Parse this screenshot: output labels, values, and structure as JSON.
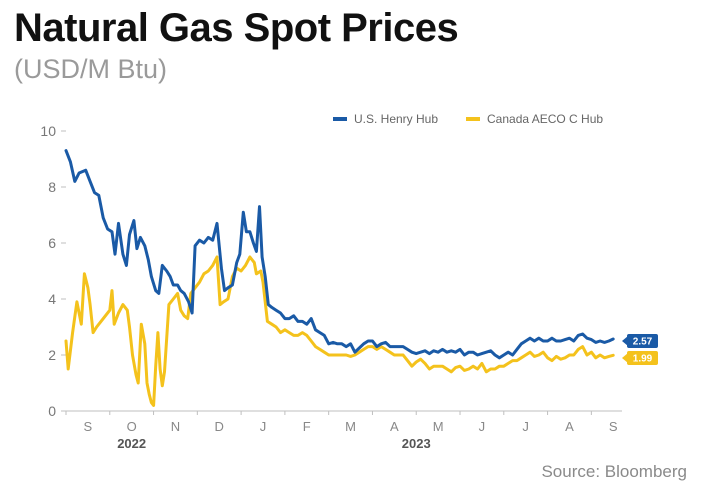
{
  "header": {
    "title": "Natural Gas Spot Prices",
    "subtitle": "(USD/M Btu)"
  },
  "footer": {
    "source": "Source: Bloomberg"
  },
  "chart_data": {
    "type": "line",
    "title": "Natural Gas Spot Prices",
    "subtitle": "(USD/M Btu)",
    "ylim": [
      0,
      10
    ],
    "yticks": [
      "0",
      "2",
      "4",
      "6",
      "8",
      "10"
    ],
    "xlim": [
      0,
      12.7
    ],
    "months": [
      "S",
      "O",
      "N",
      "D",
      "J",
      "F",
      "M",
      "A",
      "M",
      "J",
      "J",
      "A",
      "S"
    ],
    "years": [
      {
        "label": "2022",
        "x": 1.5
      },
      {
        "label": "2023",
        "x": 8.0
      }
    ],
    "grid": false,
    "legend_position": "top-right",
    "x_unit": "months since start of September 2022",
    "series": [
      {
        "name": "U.S. Henry Hub",
        "color": "#1a5aa6",
        "end_value": "2.57",
        "points": [
          [
            0.0,
            9.3
          ],
          [
            0.1,
            8.9
          ],
          [
            0.2,
            8.2
          ],
          [
            0.3,
            8.5
          ],
          [
            0.45,
            8.6
          ],
          [
            0.55,
            8.2
          ],
          [
            0.65,
            7.8
          ],
          [
            0.75,
            7.7
          ],
          [
            0.85,
            6.9
          ],
          [
            0.95,
            6.5
          ],
          [
            1.05,
            6.4
          ],
          [
            1.12,
            5.6
          ],
          [
            1.2,
            6.7
          ],
          [
            1.3,
            5.6
          ],
          [
            1.38,
            5.2
          ],
          [
            1.45,
            6.3
          ],
          [
            1.55,
            6.8
          ],
          [
            1.62,
            5.8
          ],
          [
            1.7,
            6.2
          ],
          [
            1.8,
            5.9
          ],
          [
            1.88,
            5.4
          ],
          [
            1.95,
            4.8
          ],
          [
            2.05,
            4.3
          ],
          [
            2.12,
            4.2
          ],
          [
            2.2,
            5.2
          ],
          [
            2.3,
            5.0
          ],
          [
            2.38,
            4.8
          ],
          [
            2.45,
            4.5
          ],
          [
            2.55,
            4.5
          ],
          [
            2.62,
            4.3
          ],
          [
            2.7,
            4.2
          ],
          [
            2.8,
            3.9
          ],
          [
            2.88,
            3.5
          ],
          [
            2.95,
            5.9
          ],
          [
            3.05,
            6.1
          ],
          [
            3.15,
            6.0
          ],
          [
            3.25,
            6.2
          ],
          [
            3.35,
            6.1
          ],
          [
            3.45,
            6.7
          ],
          [
            3.55,
            5.1
          ],
          [
            3.62,
            4.3
          ],
          [
            3.7,
            4.4
          ],
          [
            3.8,
            4.5
          ],
          [
            3.9,
            5.3
          ],
          [
            3.97,
            5.6
          ],
          [
            4.05,
            7.1
          ],
          [
            4.12,
            6.4
          ],
          [
            4.2,
            6.4
          ],
          [
            4.28,
            6.0
          ],
          [
            4.35,
            5.7
          ],
          [
            4.42,
            7.3
          ],
          [
            4.48,
            5.5
          ],
          [
            4.55,
            4.8
          ],
          [
            4.62,
            3.8
          ],
          [
            4.7,
            3.7
          ],
          [
            4.8,
            3.6
          ],
          [
            4.9,
            3.5
          ],
          [
            5.0,
            3.3
          ],
          [
            5.1,
            3.3
          ],
          [
            5.2,
            3.4
          ],
          [
            5.3,
            3.2
          ],
          [
            5.4,
            3.2
          ],
          [
            5.5,
            3.1
          ],
          [
            5.6,
            3.3
          ],
          [
            5.7,
            2.9
          ],
          [
            5.8,
            2.8
          ],
          [
            5.9,
            2.7
          ],
          [
            6.0,
            2.4
          ],
          [
            6.1,
            2.45
          ],
          [
            6.2,
            2.4
          ],
          [
            6.3,
            2.4
          ],
          [
            6.4,
            2.3
          ],
          [
            6.5,
            2.4
          ],
          [
            6.6,
            2.1
          ],
          [
            6.7,
            2.25
          ],
          [
            6.8,
            2.4
          ],
          [
            6.9,
            2.5
          ],
          [
            7.0,
            2.5
          ],
          [
            7.1,
            2.3
          ],
          [
            7.2,
            2.4
          ],
          [
            7.3,
            2.45
          ],
          [
            7.4,
            2.3
          ],
          [
            7.5,
            2.3
          ],
          [
            7.6,
            2.3
          ],
          [
            7.7,
            2.3
          ],
          [
            7.8,
            2.2
          ],
          [
            7.9,
            2.1
          ],
          [
            8.0,
            2.05
          ],
          [
            8.1,
            2.1
          ],
          [
            8.2,
            2.15
          ],
          [
            8.3,
            2.05
          ],
          [
            8.4,
            2.15
          ],
          [
            8.5,
            2.1
          ],
          [
            8.6,
            2.2
          ],
          [
            8.7,
            2.1
          ],
          [
            8.8,
            2.15
          ],
          [
            8.9,
            2.1
          ],
          [
            9.0,
            2.2
          ],
          [
            9.1,
            2.0
          ],
          [
            9.2,
            2.1
          ],
          [
            9.3,
            2.1
          ],
          [
            9.4,
            2.0
          ],
          [
            9.5,
            2.05
          ],
          [
            9.6,
            2.1
          ],
          [
            9.7,
            2.15
          ],
          [
            9.8,
            2.0
          ],
          [
            9.9,
            1.9
          ],
          [
            10.0,
            2.0
          ],
          [
            10.1,
            2.1
          ],
          [
            10.2,
            2.0
          ],
          [
            10.3,
            2.2
          ],
          [
            10.4,
            2.4
          ],
          [
            10.5,
            2.5
          ],
          [
            10.6,
            2.6
          ],
          [
            10.7,
            2.5
          ],
          [
            10.8,
            2.6
          ],
          [
            10.9,
            2.5
          ],
          [
            11.0,
            2.5
          ],
          [
            11.1,
            2.6
          ],
          [
            11.2,
            2.5
          ],
          [
            11.3,
            2.5
          ],
          [
            11.4,
            2.55
          ],
          [
            11.5,
            2.6
          ],
          [
            11.6,
            2.5
          ],
          [
            11.7,
            2.7
          ],
          [
            11.8,
            2.75
          ],
          [
            11.9,
            2.6
          ],
          [
            12.0,
            2.55
          ],
          [
            12.1,
            2.45
          ],
          [
            12.2,
            2.5
          ],
          [
            12.3,
            2.45
          ],
          [
            12.4,
            2.5
          ],
          [
            12.5,
            2.57
          ]
        ]
      },
      {
        "name": "Canada AECO C Hub",
        "color": "#f4c21c",
        "end_value": "1.99",
        "points": [
          [
            0.0,
            2.5
          ],
          [
            0.05,
            1.5
          ],
          [
            0.15,
            2.8
          ],
          [
            0.25,
            3.9
          ],
          [
            0.35,
            3.1
          ],
          [
            0.42,
            4.9
          ],
          [
            0.5,
            4.4
          ],
          [
            0.55,
            3.8
          ],
          [
            0.62,
            2.8
          ],
          [
            0.7,
            3.0
          ],
          [
            0.8,
            3.2
          ],
          [
            0.9,
            3.4
          ],
          [
            1.0,
            3.6
          ],
          [
            1.05,
            4.3
          ],
          [
            1.1,
            3.1
          ],
          [
            1.2,
            3.5
          ],
          [
            1.3,
            3.8
          ],
          [
            1.4,
            3.6
          ],
          [
            1.45,
            3.0
          ],
          [
            1.52,
            2.0
          ],
          [
            1.6,
            1.3
          ],
          [
            1.65,
            1.0
          ],
          [
            1.72,
            3.1
          ],
          [
            1.8,
            2.4
          ],
          [
            1.85,
            1.0
          ],
          [
            1.9,
            0.6
          ],
          [
            1.95,
            0.3
          ],
          [
            2.0,
            0.2
          ],
          [
            2.05,
            1.6
          ],
          [
            2.1,
            2.8
          ],
          [
            2.15,
            1.5
          ],
          [
            2.2,
            0.9
          ],
          [
            2.25,
            1.4
          ],
          [
            2.35,
            3.8
          ],
          [
            2.45,
            4.0
          ],
          [
            2.55,
            4.2
          ],
          [
            2.62,
            3.6
          ],
          [
            2.7,
            3.4
          ],
          [
            2.78,
            3.3
          ],
          [
            2.85,
            4.2
          ],
          [
            2.95,
            4.4
          ],
          [
            3.05,
            4.6
          ],
          [
            3.15,
            4.9
          ],
          [
            3.25,
            5.0
          ],
          [
            3.35,
            5.2
          ],
          [
            3.45,
            5.5
          ],
          [
            3.52,
            3.8
          ],
          [
            3.6,
            3.9
          ],
          [
            3.7,
            4.0
          ],
          [
            3.8,
            4.8
          ],
          [
            3.9,
            5.1
          ],
          [
            4.0,
            5.0
          ],
          [
            4.1,
            5.2
          ],
          [
            4.2,
            5.5
          ],
          [
            4.3,
            5.3
          ],
          [
            4.35,
            4.9
          ],
          [
            4.45,
            5.0
          ],
          [
            4.5,
            4.6
          ],
          [
            4.6,
            3.2
          ],
          [
            4.7,
            3.1
          ],
          [
            4.8,
            3.0
          ],
          [
            4.9,
            2.8
          ],
          [
            5.0,
            2.9
          ],
          [
            5.1,
            2.8
          ],
          [
            5.2,
            2.7
          ],
          [
            5.3,
            2.7
          ],
          [
            5.4,
            2.8
          ],
          [
            5.5,
            2.7
          ],
          [
            5.6,
            2.5
          ],
          [
            5.7,
            2.3
          ],
          [
            5.8,
            2.2
          ],
          [
            5.9,
            2.1
          ],
          [
            6.0,
            2.0
          ],
          [
            6.1,
            2.0
          ],
          [
            6.2,
            2.0
          ],
          [
            6.3,
            2.0
          ],
          [
            6.4,
            2.0
          ],
          [
            6.5,
            1.95
          ],
          [
            6.6,
            2.0
          ],
          [
            6.7,
            2.1
          ],
          [
            6.8,
            2.2
          ],
          [
            6.9,
            2.3
          ],
          [
            7.0,
            2.3
          ],
          [
            7.1,
            2.2
          ],
          [
            7.2,
            2.3
          ],
          [
            7.3,
            2.2
          ],
          [
            7.4,
            2.1
          ],
          [
            7.5,
            2.0
          ],
          [
            7.6,
            2.0
          ],
          [
            7.7,
            2.0
          ],
          [
            7.8,
            1.8
          ],
          [
            7.9,
            1.6
          ],
          [
            8.0,
            1.75
          ],
          [
            8.1,
            1.85
          ],
          [
            8.2,
            1.7
          ],
          [
            8.3,
            1.5
          ],
          [
            8.4,
            1.6
          ],
          [
            8.5,
            1.6
          ],
          [
            8.6,
            1.6
          ],
          [
            8.7,
            1.5
          ],
          [
            8.8,
            1.4
          ],
          [
            8.9,
            1.55
          ],
          [
            9.0,
            1.6
          ],
          [
            9.1,
            1.45
          ],
          [
            9.2,
            1.5
          ],
          [
            9.3,
            1.6
          ],
          [
            9.4,
            1.5
          ],
          [
            9.5,
            1.7
          ],
          [
            9.6,
            1.4
          ],
          [
            9.7,
            1.5
          ],
          [
            9.8,
            1.5
          ],
          [
            9.9,
            1.6
          ],
          [
            10.0,
            1.6
          ],
          [
            10.1,
            1.7
          ],
          [
            10.2,
            1.8
          ],
          [
            10.3,
            1.8
          ],
          [
            10.4,
            1.9
          ],
          [
            10.5,
            2.0
          ],
          [
            10.6,
            2.1
          ],
          [
            10.7,
            1.95
          ],
          [
            10.8,
            2.0
          ],
          [
            10.9,
            2.1
          ],
          [
            11.0,
            1.9
          ],
          [
            11.1,
            1.8
          ],
          [
            11.2,
            1.95
          ],
          [
            11.3,
            1.85
          ],
          [
            11.4,
            1.9
          ],
          [
            11.5,
            2.0
          ],
          [
            11.6,
            2.0
          ],
          [
            11.7,
            2.2
          ],
          [
            11.8,
            2.3
          ],
          [
            11.9,
            2.0
          ],
          [
            12.0,
            2.1
          ],
          [
            12.1,
            1.9
          ],
          [
            12.2,
            2.0
          ],
          [
            12.3,
            1.9
          ],
          [
            12.4,
            1.95
          ],
          [
            12.5,
            1.99
          ]
        ]
      }
    ]
  }
}
